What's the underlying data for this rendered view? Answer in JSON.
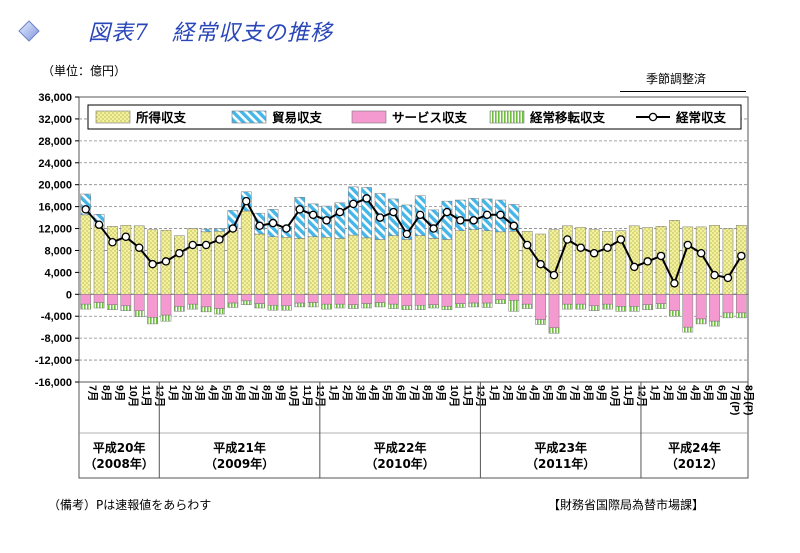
{
  "header": {
    "title": "図表7　経常収支の推移",
    "unit": "（単位：億円）",
    "seasonal_label": "季節調整済"
  },
  "footer": {
    "note": "（備考）Pは速報値をあらわす",
    "source": "【財務省国際局為替市場課】"
  },
  "legend": [
    {
      "label": "所得収支",
      "key": "income"
    },
    {
      "label": "貿易収支",
      "key": "trade"
    },
    {
      "label": "サービス収支",
      "key": "services"
    },
    {
      "label": "経常移転収支",
      "key": "transfers"
    },
    {
      "label": "経常収支",
      "key": "current"
    }
  ],
  "colors": {
    "income": "#f3f19a",
    "trade": "#44b6e8",
    "services": "#f59ad0",
    "transfers": "#6fbf3f",
    "line": "#000000",
    "grid": "#888888"
  },
  "chart_data": {
    "type": "bar",
    "stacked": true,
    "ylim": [
      -16000,
      36000
    ],
    "yticks": [
      -16000,
      -12000,
      -8000,
      -4000,
      0,
      4000,
      8000,
      12000,
      16000,
      20000,
      24000,
      28000,
      32000,
      36000
    ],
    "ytick_labels": [
      "-16,000",
      "-12,000",
      "-8,000",
      "-4,000",
      "0",
      "4,000",
      "8,000",
      "12,000",
      "16,000",
      "20,000",
      "24,000",
      "28,000",
      "32,000",
      "36,000"
    ],
    "grid": true,
    "legend_position": "top",
    "categories": [
      "7月",
      "8月",
      "9月",
      "10月",
      "11月",
      "12月",
      "1月",
      "2月",
      "3月",
      "4月",
      "5月",
      "6月",
      "7月",
      "8月",
      "9月",
      "10月",
      "11月",
      "12月",
      "1月",
      "2月",
      "3月",
      "4月",
      "5月",
      "6月",
      "7月",
      "8月",
      "9月",
      "10月",
      "11月",
      "12月",
      "1月",
      "2月",
      "3月",
      "4月",
      "5月",
      "6月",
      "7月",
      "8月",
      "9月",
      "10月",
      "11月",
      "12月",
      "1月",
      "2月",
      "3月",
      "4月",
      "5月",
      "6月",
      "7月(P)",
      "8月(P)"
    ],
    "years": [
      {
        "label": "平成20年",
        "sub": "（2008年）",
        "count": 6
      },
      {
        "label": "平成21年",
        "sub": "（2009年）",
        "count": 12
      },
      {
        "label": "平成22年",
        "sub": "（2010年）",
        "count": 12
      },
      {
        "label": "平成23年",
        "sub": "（2011年）",
        "count": 12
      },
      {
        "label": "平成24年",
        "sub": "（2012）",
        "count": 8
      }
    ],
    "series": [
      {
        "name": "所得収支",
        "key": "income",
        "values": [
          14500,
          12600,
          12400,
          12600,
          12500,
          11800,
          11700,
          10700,
          12000,
          11400,
          11500,
          11600,
          15200,
          11000,
          10500,
          10400,
          10200,
          10500,
          10400,
          10200,
          10800,
          10300,
          10000,
          10700,
          10000,
          10700,
          10200,
          10000,
          11600,
          11800,
          11600,
          11400,
          11500,
          11500,
          11000,
          11800,
          12500,
          12200,
          11800,
          11500,
          11600,
          12500,
          12200,
          12400,
          13500,
          12300,
          12300,
          12600,
          12000,
          12600
        ]
      },
      {
        "name": "貿易収支",
        "key": "trade",
        "values": [
          3800,
          2000,
          0,
          0,
          0,
          0,
          0,
          0,
          0,
          500,
          500,
          3700,
          3500,
          3800,
          5000,
          2000,
          7500,
          6000,
          5700,
          6500,
          8800,
          9200,
          8400,
          6700,
          6300,
          7300,
          5200,
          7000,
          5600,
          5700,
          5800,
          5800,
          4900,
          0,
          0,
          0,
          0,
          0,
          0,
          0,
          0,
          0,
          0,
          0,
          0,
          0,
          0,
          0,
          0,
          0
        ]
      },
      {
        "name": "サービス収支",
        "key": "services",
        "values": [
          -1800,
          -1500,
          -1900,
          -2100,
          -3000,
          -4200,
          -3800,
          -2200,
          -1800,
          -2300,
          -2600,
          -1600,
          -1200,
          -1700,
          -2000,
          -2100,
          -1600,
          -1500,
          -1800,
          -1800,
          -1900,
          -1700,
          -1500,
          -1800,
          -2100,
          -2000,
          -1900,
          -2200,
          -1700,
          -1600,
          -1600,
          -1000,
          -1100,
          -1800,
          -4600,
          -6100,
          -1800,
          -1800,
          -2100,
          -1800,
          -2200,
          -2200,
          -1900,
          -1700,
          -3000,
          -6000,
          -4500,
          -4900,
          -3400,
          -3400
        ]
      },
      {
        "name": "経常移転収支",
        "key": "transfers",
        "values": [
          -900,
          -1000,
          -900,
          -900,
          -1100,
          -1200,
          -1100,
          -900,
          -900,
          -900,
          -1000,
          -800,
          -700,
          -800,
          -900,
          -800,
          -700,
          -800,
          -900,
          -700,
          -700,
          -800,
          -800,
          -800,
          -700,
          -800,
          -600,
          -600,
          -700,
          -700,
          -800,
          -700,
          -2000,
          -800,
          -900,
          -1000,
          -900,
          -900,
          -900,
          -900,
          -900,
          -900,
          -900,
          -900,
          -1000,
          -900,
          -900,
          -900,
          -900,
          -900
        ]
      },
      {
        "name": "経常収支",
        "key": "current",
        "values": [
          15500,
          12700,
          9500,
          10500,
          8500,
          5500,
          6000,
          7500,
          9000,
          9000,
          10000,
          12000,
          17000,
          12500,
          13000,
          12000,
          15500,
          14500,
          13500,
          15000,
          16500,
          17500,
          14000,
          15000,
          11000,
          14500,
          12000,
          15000,
          13500,
          13500,
          14500,
          14500,
          12500,
          9000,
          5500,
          3500,
          10000,
          8500,
          7500,
          8500,
          10000,
          5000,
          6000,
          7000,
          2000,
          9000,
          7500,
          3500,
          3000,
          7000
        ]
      }
    ]
  }
}
